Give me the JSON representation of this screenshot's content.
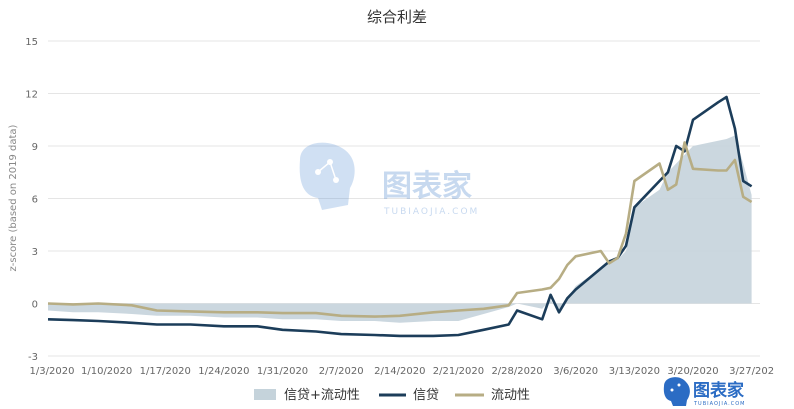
{
  "chart_data": {
    "type": "line",
    "title": "综合利差",
    "ylabel": "z-score (based on 2019 data)",
    "xlabel": "",
    "ylim": [
      -3,
      15
    ],
    "yticks": [
      -3,
      0,
      3,
      6,
      9,
      12,
      15
    ],
    "xlim": [
      "2020-01-03",
      "2020-03-28"
    ],
    "xticks": [
      "1/3/2020",
      "1/10/2020",
      "1/17/2020",
      "1/24/2020",
      "1/31/2020",
      "2/7/2020",
      "2/14/2020",
      "2/21/2020",
      "2/28/2020",
      "3/6/2020",
      "3/13/2020",
      "3/20/2020",
      "3/27/202"
    ],
    "grid": "horizontal",
    "legend_position": "bottom",
    "x": [
      "2020-01-03",
      "2020-01-06",
      "2020-01-09",
      "2020-01-13",
      "2020-01-16",
      "2020-01-20",
      "2020-01-24",
      "2020-01-28",
      "2020-01-31",
      "2020-02-04",
      "2020-02-07",
      "2020-02-11",
      "2020-02-14",
      "2020-02-18",
      "2020-02-21",
      "2020-02-24",
      "2020-02-27",
      "2020-02-28",
      "2020-03-02",
      "2020-03-03",
      "2020-03-04",
      "2020-03-05",
      "2020-03-06",
      "2020-03-09",
      "2020-03-10",
      "2020-03-11",
      "2020-03-12",
      "2020-03-13",
      "2020-03-16",
      "2020-03-17",
      "2020-03-18",
      "2020-03-19",
      "2020-03-20",
      "2020-03-23",
      "2020-03-24",
      "2020-03-25",
      "2020-03-26",
      "2020-03-27"
    ],
    "series": [
      {
        "name": "信贷+流动性",
        "type": "area",
        "color": "#c5d3db",
        "values": [
          -0.4,
          -0.5,
          -0.5,
          -0.6,
          -0.7,
          -0.7,
          -0.8,
          -0.8,
          -0.9,
          -0.9,
          -1.0,
          -1.0,
          -1.1,
          -1.0,
          -1.0,
          -0.6,
          -0.2,
          0.0,
          -0.3,
          0.2,
          -0.5,
          0.3,
          1.0,
          2.0,
          2.5,
          2.5,
          3.0,
          5.5,
          6.5,
          7.5,
          8.0,
          8.5,
          9.0,
          9.3,
          9.4,
          9.6,
          8.0,
          6.2
        ]
      },
      {
        "name": "信贷",
        "type": "line",
        "color": "#1c3d5a",
        "values": [
          -0.9,
          -0.95,
          -1.0,
          -1.1,
          -1.2,
          -1.2,
          -1.3,
          -1.3,
          -1.5,
          -1.6,
          -1.75,
          -1.8,
          -1.85,
          -1.85,
          -1.8,
          -1.5,
          -1.2,
          -0.4,
          -0.9,
          0.5,
          -0.5,
          0.3,
          0.8,
          2.0,
          2.4,
          2.6,
          3.3,
          5.5,
          7.0,
          7.5,
          9.0,
          8.7,
          10.5,
          11.5,
          11.8,
          10.0,
          7.0,
          6.7
        ]
      },
      {
        "name": "流动性",
        "type": "line",
        "color": "#b7ad84",
        "values": [
          0.0,
          -0.05,
          0.0,
          -0.1,
          -0.4,
          -0.45,
          -0.5,
          -0.5,
          -0.55,
          -0.55,
          -0.7,
          -0.75,
          -0.7,
          -0.5,
          -0.4,
          -0.3,
          -0.1,
          0.6,
          0.8,
          0.9,
          1.4,
          2.2,
          2.7,
          3.0,
          2.3,
          2.6,
          4.0,
          7.0,
          8.0,
          6.5,
          6.8,
          9.2,
          7.7,
          7.6,
          7.6,
          8.2,
          6.1,
          5.8
        ]
      }
    ]
  },
  "watermark": {
    "text": "图表家",
    "sub": "TUBIAOJIA.COM"
  },
  "logo": {
    "text": "图表家",
    "sub": "TUBIAOJIA.COM"
  }
}
